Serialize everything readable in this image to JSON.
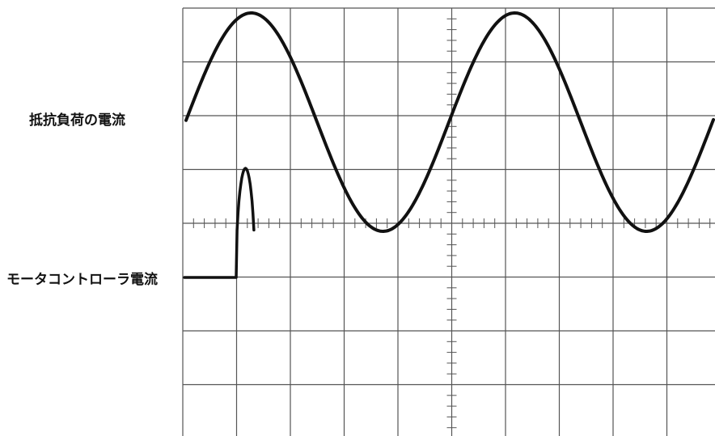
{
  "labels": {
    "resistive_load_current": "抵抗負荷の電流",
    "motor_controller_current": "モータコントローラ電流"
  },
  "colors": {
    "grid": "#555555",
    "trace": "#111111",
    "background": "#ffffff"
  },
  "scope": {
    "grid_divisions": {
      "horizontal": 10,
      "vertical": 8
    },
    "minor_ticks_per_division": 5
  }
}
